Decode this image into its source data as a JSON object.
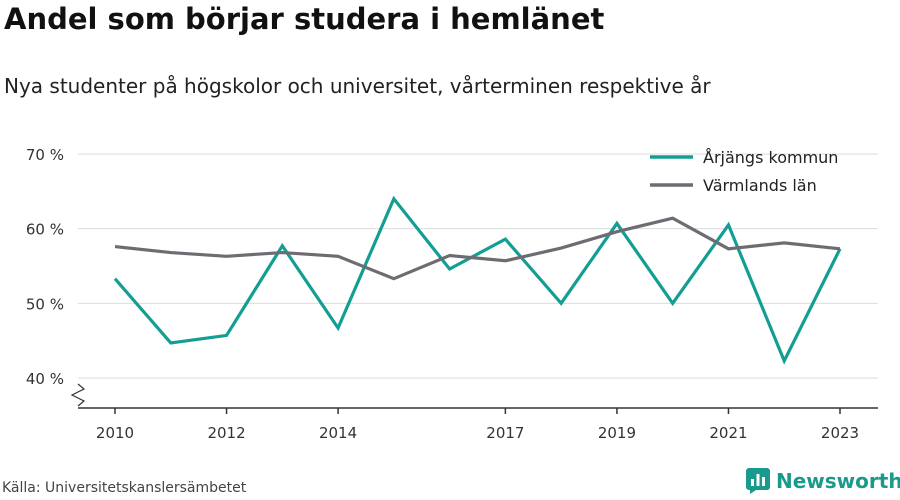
{
  "title": "Andel som börjar studera i hemlänet",
  "subtitle": "Nya studenter på högskolor och universitet, vårterminen respektive år",
  "source": "Källa: Universitetskanslersämbetet",
  "brand": "Newsworthy",
  "colors": {
    "arjang": "#139e94",
    "varmland": "#6e6c72",
    "grid": "#dddddd",
    "axis": "#333333",
    "brand": "#1a9a8c"
  },
  "chart_data": {
    "type": "line",
    "x": [
      2010,
      2011,
      2012,
      2013,
      2014,
      2015,
      2016,
      2017,
      2018,
      2019,
      2020,
      2021,
      2022,
      2023
    ],
    "x_tick_values": [
      2010,
      2012,
      2014,
      2017,
      2019,
      2021,
      2023
    ],
    "x_tick_labels": [
      "2010",
      "2012",
      "2014",
      "2017",
      "2019",
      "2021",
      "2023"
    ],
    "y_tick_values": [
      40,
      50,
      60,
      70
    ],
    "y_tick_labels": [
      "40 %",
      "50 %",
      "60 %",
      "70 %"
    ],
    "ylim": [
      36,
      70
    ],
    "y_axis_break": true,
    "grid": true,
    "legend_position": "top-right",
    "series": [
      {
        "name": "Årjängs kommun",
        "values": [
          53.3,
          44.7,
          45.7,
          57.7,
          46.7,
          64.0,
          54.6,
          58.6,
          50.0,
          60.7,
          50.0,
          60.5,
          42.3,
          57.3
        ]
      },
      {
        "name": "Värmlands län",
        "values": [
          57.6,
          56.8,
          56.3,
          56.8,
          56.3,
          53.3,
          56.4,
          55.7,
          57.4,
          59.6,
          61.4,
          57.3,
          58.1,
          57.3
        ]
      }
    ]
  }
}
